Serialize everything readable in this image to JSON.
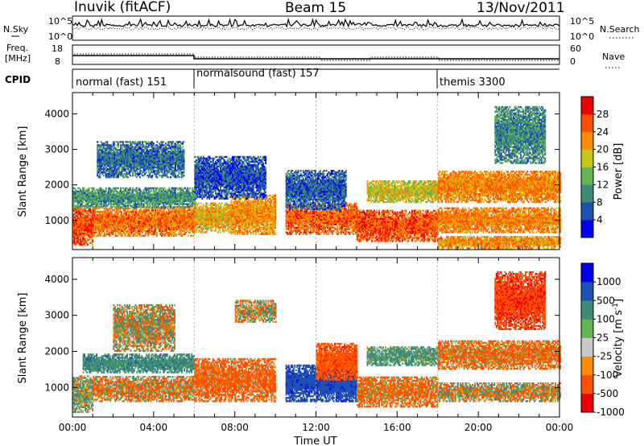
{
  "header": {
    "station": "Inuvik (fitACF)",
    "beam": "Beam 15",
    "date": "13/Nov/2011"
  },
  "top_panels": {
    "noise": {
      "left_label": "N.Sky",
      "right_label": "N.Search",
      "left_ticks": [
        "10^5",
        "10^0"
      ],
      "right_ticks": [
        "10^5",
        "10^0"
      ]
    },
    "freq": {
      "left_label_1": "Freq.",
      "left_label_2": "[MHz]",
      "right_label": "Nave",
      "left_ticks": [
        "18",
        "8"
      ],
      "right_ticks": [
        "60",
        "0"
      ]
    },
    "cpid": {
      "label": "CPID",
      "modes": [
        {
          "name": "normal (fast) 151",
          "start_hour": 0
        },
        {
          "name": "normalsound (fast) 157",
          "start_hour": 6
        },
        {
          "name": "themis 3300",
          "start_hour": 18
        }
      ]
    }
  },
  "chart_data": [
    {
      "type": "heatmap",
      "name": "power",
      "ylabel": "Slant Range [km]",
      "xlabel": "",
      "ylim": [
        180,
        4600
      ],
      "xlim": [
        0,
        24
      ],
      "y_ticks": [
        1000,
        2000,
        3000,
        4000
      ],
      "colorbar": {
        "label": "Power [dB]",
        "ticks": [
          "28",
          "24",
          "20",
          "16",
          "12",
          "8",
          "4"
        ],
        "colors": [
          "#0000ee",
          "#1e50b4",
          "#3c8c78",
          "#64b450",
          "#c8c814",
          "#ff8c00",
          "#ff5000",
          "#ee0000"
        ]
      },
      "regions": [
        {
          "t0": 0.0,
          "t1": 1.0,
          "r0": 300,
          "r1": 1400,
          "v": 28
        },
        {
          "t0": 1.0,
          "t1": 6.0,
          "r0": 550,
          "r1": 1400,
          "v": 26
        },
        {
          "t0": 0.0,
          "t1": 6.0,
          "r0": 1350,
          "r1": 1900,
          "v": 13
        },
        {
          "t0": 1.2,
          "t1": 5.5,
          "r0": 2200,
          "r1": 3200,
          "v": 10
        },
        {
          "t0": 6.0,
          "t1": 8.0,
          "r0": 650,
          "r1": 1500,
          "v": 22
        },
        {
          "t0": 7.8,
          "t1": 10.0,
          "r0": 600,
          "r1": 1700,
          "v": 24
        },
        {
          "t0": 6.0,
          "t1": 9.5,
          "r0": 1600,
          "r1": 2800,
          "v": 8
        },
        {
          "t0": 10.5,
          "t1": 14.0,
          "r0": 600,
          "r1": 1500,
          "v": 27
        },
        {
          "t0": 10.5,
          "t1": 13.5,
          "r0": 1300,
          "r1": 2400,
          "v": 9
        },
        {
          "t0": 14.0,
          "t1": 18.0,
          "r0": 400,
          "r1": 1300,
          "v": 28
        },
        {
          "t0": 14.5,
          "t1": 18.0,
          "r0": 1500,
          "r1": 2100,
          "v": 20
        },
        {
          "t0": 18.0,
          "t1": 24.0,
          "r0": 1500,
          "r1": 2400,
          "v": 25
        },
        {
          "t0": 18.0,
          "t1": 24.0,
          "r0": 650,
          "r1": 1350,
          "v": 25
        },
        {
          "t0": 18.0,
          "t1": 24.0,
          "r0": 200,
          "r1": 550,
          "v": 24
        },
        {
          "t0": 20.8,
          "t1": 23.3,
          "r0": 2600,
          "r1": 4200,
          "v": 12
        }
      ]
    },
    {
      "type": "heatmap",
      "name": "velocity",
      "ylabel": "Slant Range [km]",
      "xlabel": "Time UT",
      "ylim": [
        180,
        4600
      ],
      "xlim": [
        0,
        24
      ],
      "y_ticks": [
        1000,
        2000,
        3000,
        4000
      ],
      "x_ticks": [
        "00:00",
        "04:00",
        "08:00",
        "12:00",
        "16:00",
        "20:00",
        "00:00"
      ],
      "colorbar": {
        "label": "Velocity [m s^-1]",
        "ticks": [
          "1000",
          "500",
          "100",
          "25",
          "-25",
          "-100",
          "-500",
          "-1000"
        ],
        "colors": [
          "#ee0000",
          "#ff5000",
          "#ff8c00",
          "#c8c8c8",
          "#64b450",
          "#3c8c78",
          "#1e50b4",
          "#0000ee"
        ]
      },
      "regions": [
        {
          "t0": 0.0,
          "t1": 1.0,
          "r0": 300,
          "r1": 1300,
          "v": 100
        },
        {
          "t0": 1.0,
          "t1": 6.0,
          "r0": 600,
          "r1": 1300,
          "v": -100
        },
        {
          "t0": 0.5,
          "t1": 6.0,
          "r0": 1400,
          "r1": 1900,
          "v": 300
        },
        {
          "t0": 2.0,
          "t1": 5.0,
          "r0": 2000,
          "r1": 3300,
          "v": 0
        },
        {
          "t0": 6.0,
          "t1": 10.0,
          "r0": 600,
          "r1": 1800,
          "v": -200
        },
        {
          "t0": 8.0,
          "t1": 10.0,
          "r0": 2800,
          "r1": 3400,
          "v": 0
        },
        {
          "t0": 10.5,
          "t1": 14.0,
          "r0": 600,
          "r1": 1600,
          "v": 800
        },
        {
          "t0": 12.0,
          "t1": 14.0,
          "r0": 1200,
          "r1": 2200,
          "v": -300
        },
        {
          "t0": 14.0,
          "t1": 18.0,
          "r0": 450,
          "r1": 1300,
          "v": -150
        },
        {
          "t0": 14.5,
          "t1": 18.0,
          "r0": 1600,
          "r1": 2100,
          "v": 200
        },
        {
          "t0": 18.0,
          "t1": 24.0,
          "r0": 600,
          "r1": 1100,
          "v": 0
        },
        {
          "t0": 18.0,
          "t1": 24.0,
          "r0": 1500,
          "r1": 2300,
          "v": -150
        },
        {
          "t0": 20.8,
          "t1": 23.3,
          "r0": 2600,
          "r1": 4200,
          "v": -400
        }
      ]
    }
  ]
}
